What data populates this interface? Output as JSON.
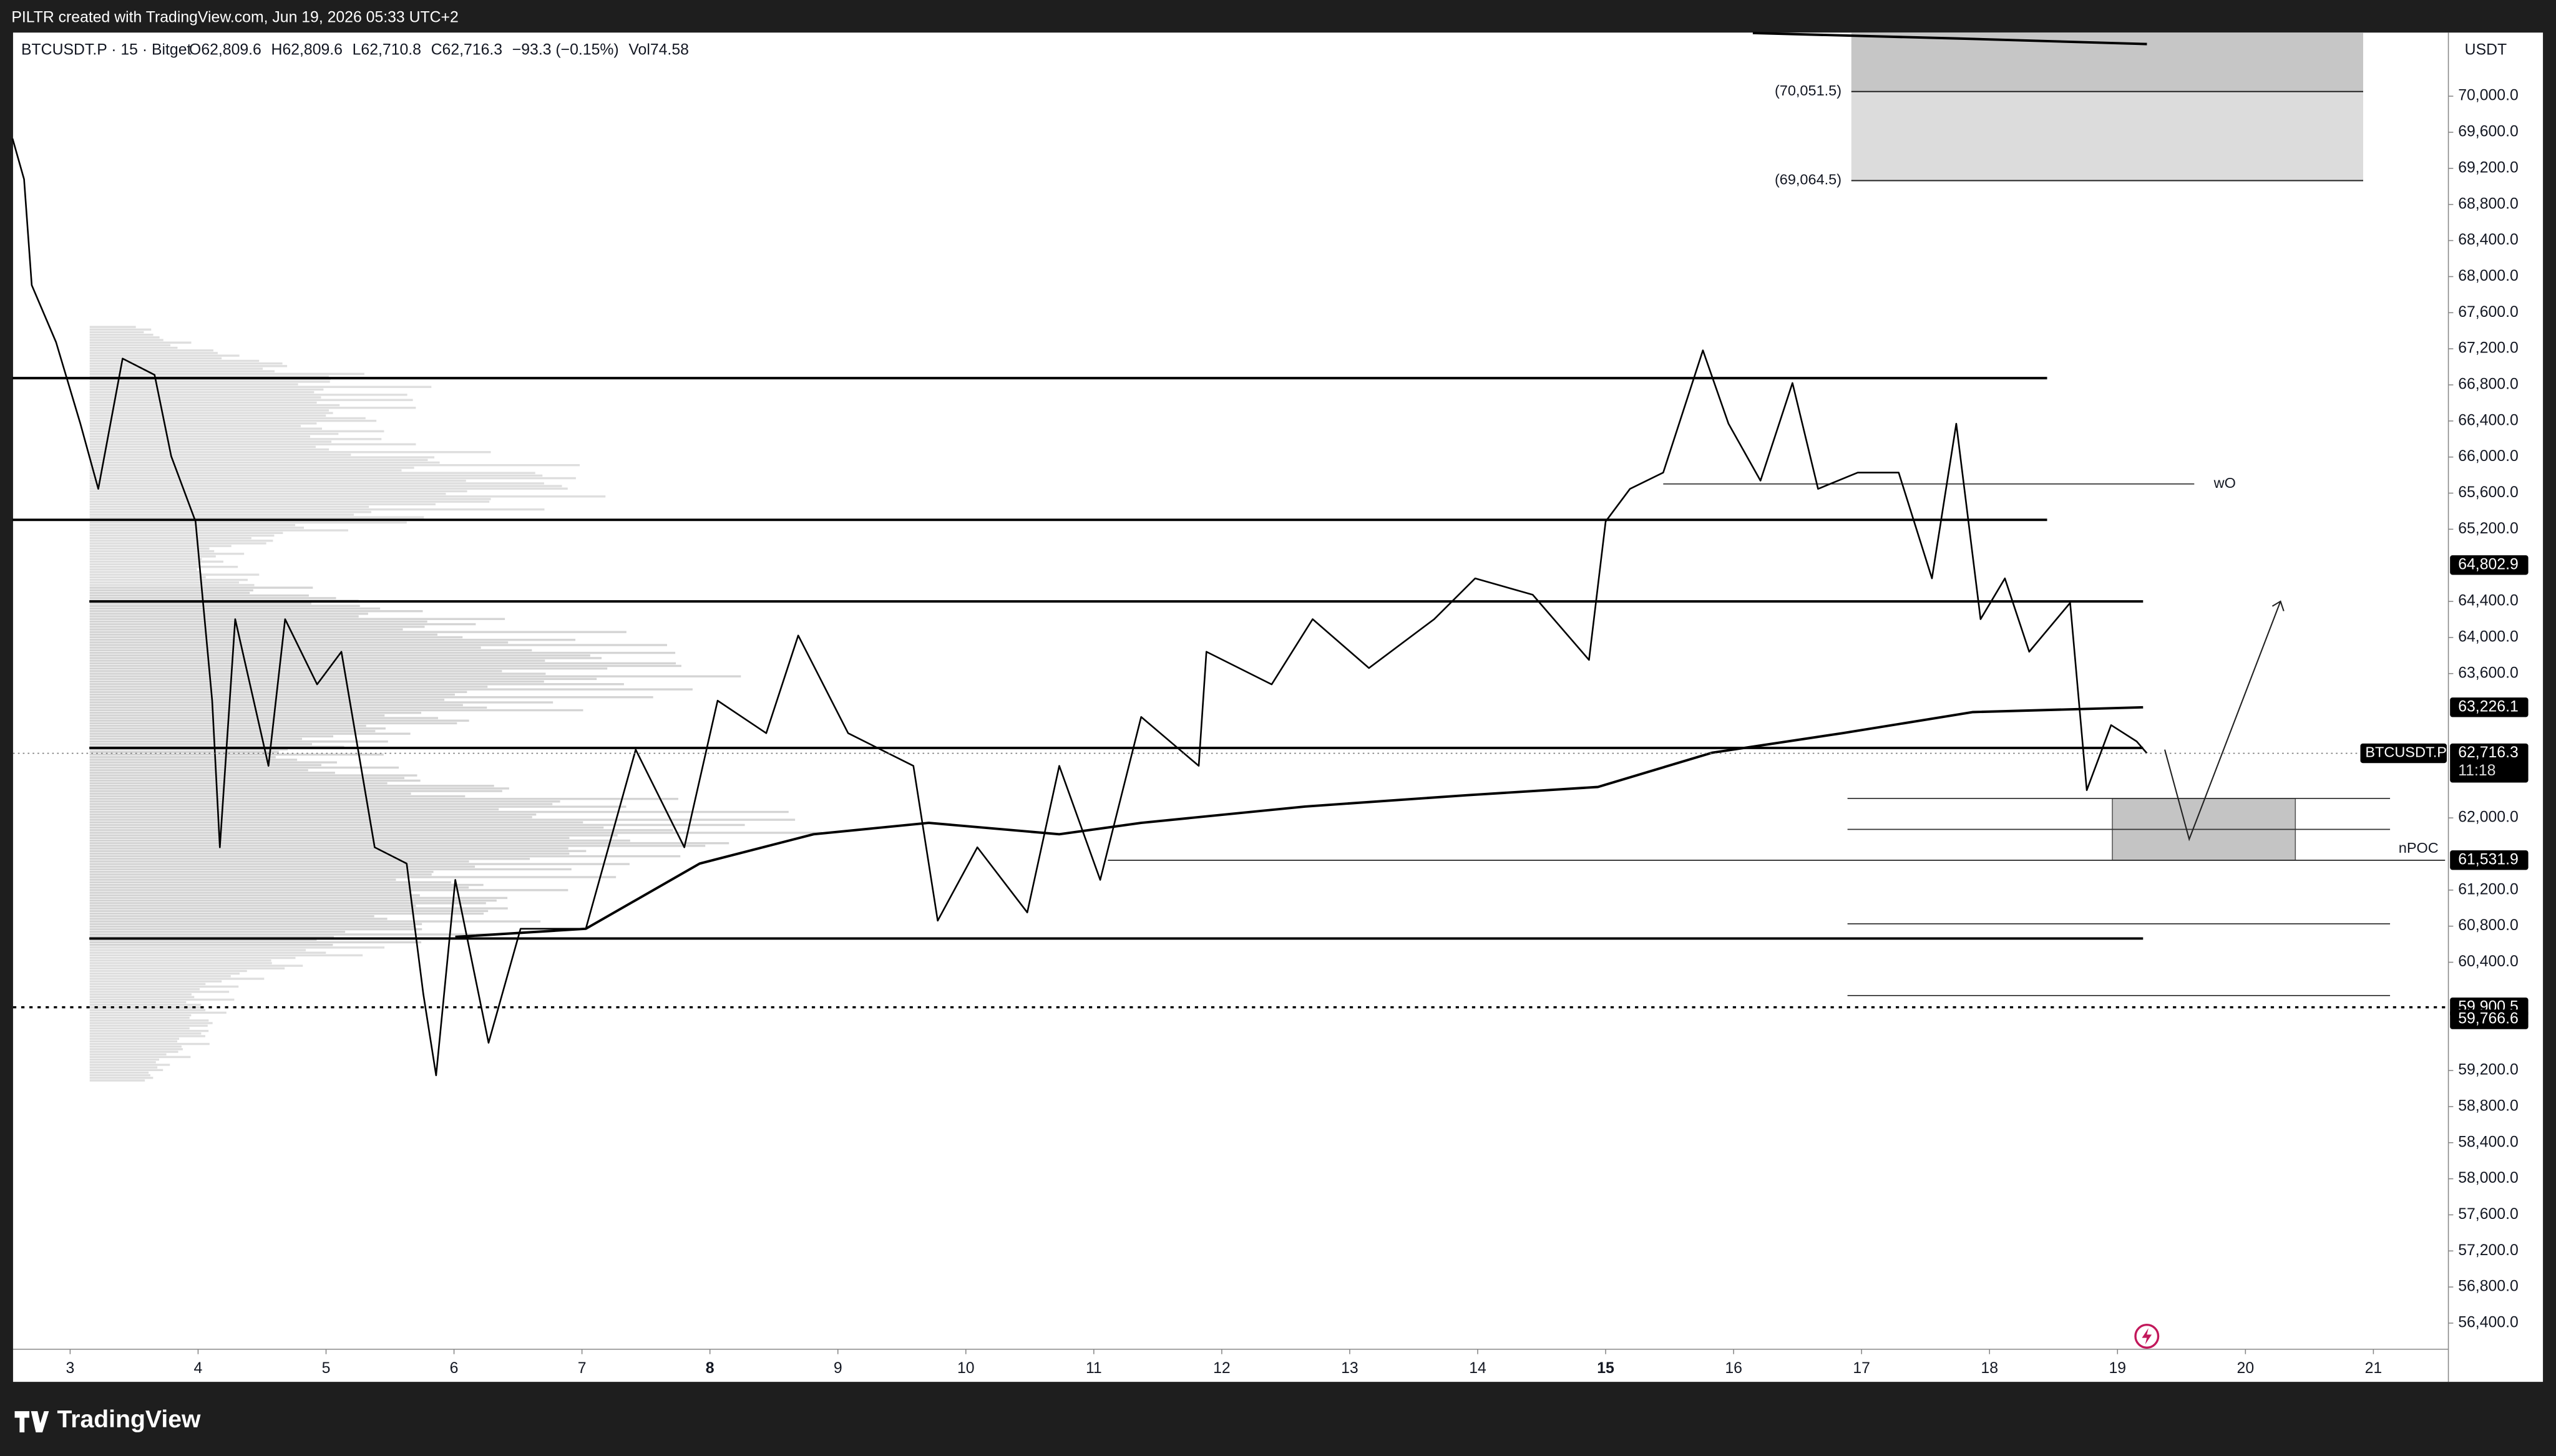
{
  "chart_data": {
    "type": "line",
    "attribution": "PILTR created with TradingView.com, Jun 19, 2026 05:33 UTC+2",
    "title": "BTCUSDT.P · 15 · Bitget",
    "legend_values": [
      "O62,809.6",
      "H62,809.6",
      "L62,710.8",
      "C62,716.3",
      "−93.3 (−0.15%)",
      "Vol74.58"
    ],
    "y_unit": "USDT",
    "brand": "TradingView",
    "xlim": [
      2.554,
      21.586
    ],
    "xticks": [
      3,
      4,
      5,
      6,
      7,
      8,
      9,
      10,
      11,
      12,
      13,
      14,
      15,
      16,
      17,
      18,
      19,
      20,
      21
    ],
    "bold_xticks": [
      8,
      15
    ],
    "ylim": [
      56110,
      70705
    ],
    "yticks": [
      {
        "value": 70000,
        "label": "70,000.0"
      },
      {
        "value": 69600,
        "label": "69,600.0"
      },
      {
        "value": 69200,
        "label": "69,200.0"
      },
      {
        "value": 68800,
        "label": "68,800.0"
      },
      {
        "value": 68400,
        "label": "68,400.0"
      },
      {
        "value": 68000,
        "label": "68,000.0"
      },
      {
        "value": 67600,
        "label": "67,600.0"
      },
      {
        "value": 67200,
        "label": "67,200.0"
      },
      {
        "value": 66800,
        "label": "66,800.0"
      },
      {
        "value": 66400,
        "label": "66,400.0"
      },
      {
        "value": 66000,
        "label": "66,000.0"
      },
      {
        "value": 65600,
        "label": "65,600.0"
      },
      {
        "value": 65200,
        "label": "65,200.0"
      },
      {
        "value": 64400,
        "label": "64,400.0"
      },
      {
        "value": 64000,
        "label": "64,000.0"
      },
      {
        "value": 63600,
        "label": "63,600.0"
      },
      {
        "value": 62000,
        "label": "62,000.0"
      },
      {
        "value": 61200,
        "label": "61,200.0"
      },
      {
        "value": 60800,
        "label": "60,800.0"
      },
      {
        "value": 60400,
        "label": "60,400.0"
      },
      {
        "value": 59200,
        "label": "59,200.0"
      },
      {
        "value": 58800,
        "label": "58,800.0"
      },
      {
        "value": 58400,
        "label": "58,400.0"
      },
      {
        "value": 58000,
        "label": "58,000.0"
      },
      {
        "value": 57600,
        "label": "57,600.0"
      },
      {
        "value": 57200,
        "label": "57,200.0"
      },
      {
        "value": 56800,
        "label": "56,800.0"
      },
      {
        "value": 56400,
        "label": "56,400.0"
      }
    ],
    "series": [
      {
        "color": "#000000",
        "x": [
          2.55,
          2.64,
          2.7,
          2.89,
          3.08,
          3.22,
          3.41,
          3.66,
          3.79,
          3.98,
          4.11,
          4.17,
          4.29,
          4.55,
          4.68,
          4.93,
          5.12,
          5.38,
          5.63,
          5.76,
          5.86,
          6.01,
          6.27,
          6.52,
          7.03,
          7.42,
          7.8,
          8.06,
          8.44,
          8.69,
          9.08,
          9.59,
          9.78,
          10.09,
          10.48,
          10.73,
          11.05,
          11.37,
          11.82,
          11.88,
          12.39,
          12.71,
          13.15,
          13.66,
          13.98,
          14.43,
          14.87,
          15.0,
          15.19,
          15.45,
          15.76,
          15.96,
          16.21,
          16.46,
          16.66,
          16.97,
          17.29,
          17.55,
          17.74,
          17.93,
          18.12,
          18.31,
          18.63,
          18.76,
          18.95,
          19.15,
          19.23
        ],
        "values": [
          69530,
          69079,
          67905,
          67273,
          66370,
          65647,
          67092,
          66911,
          66009,
          65286,
          63300,
          61674,
          64203,
          62577,
          64203,
          63480,
          63842,
          61674,
          61494,
          60049,
          59146,
          61313,
          59507,
          60771,
          60771,
          62757,
          61674,
          63300,
          62939,
          64022,
          62939,
          62577,
          60861,
          61674,
          60952,
          62577,
          61313,
          63119,
          62577,
          63842,
          63480,
          64203,
          63661,
          64203,
          64655,
          64474,
          63751,
          65286,
          65647,
          65828,
          67183,
          66370,
          65738,
          66821,
          65647,
          65828,
          65828,
          64655,
          66370,
          64203,
          64655,
          63842,
          64384,
          62307,
          63029,
          62848,
          62716.3
        ]
      },
      {
        "color": "#000000",
        "x": [
          6.01,
          7.03,
          7.92,
          8.81,
          9.71,
          10.73,
          11.37,
          12.65,
          13.92,
          14.94,
          15.83,
          16.85,
          17.87,
          19.2
        ],
        "values": [
          60681,
          60771,
          61494,
          61819,
          61945,
          61819,
          61945,
          62126,
          62252,
          62343,
          62722,
          62939,
          63173,
          63226.1
        ]
      },
      {
        "color": "#000000",
        "x": [
          16.15,
          17.74,
          19.23
        ],
        "values": [
          70700,
          70640,
          70578
        ]
      }
    ],
    "levels": [
      {
        "value": 66875,
        "x": [
          2.55,
          18.45
        ],
        "style": "thick"
      },
      {
        "value": 65304,
        "x": [
          2.55,
          18.45
        ],
        "style": "thick"
      },
      {
        "value": 64400,
        "x": [
          3.15,
          19.2
        ],
        "style": "thick"
      },
      {
        "value": 62776,
        "x": [
          3.15,
          19.2
        ],
        "style": "thick"
      },
      {
        "value": 60663,
        "x": [
          3.15,
          19.2
        ],
        "style": "thick"
      },
      {
        "value": 65702,
        "x": [
          15.45,
          19.6
        ],
        "style": "thin",
        "label": "wO"
      },
      {
        "value": 61530,
        "x": [
          11.11,
          21.56
        ],
        "style": "thin",
        "label": "nPOC"
      },
      {
        "value": 62216,
        "x": [
          16.89,
          21.13
        ],
        "style": "thin"
      },
      {
        "value": 61873,
        "x": [
          16.89,
          21.13
        ],
        "style": "thin"
      },
      {
        "value": 60826,
        "x": [
          16.89,
          21.13
        ],
        "style": "thin"
      },
      {
        "value": 60031,
        "x": [
          16.89,
          21.13
        ],
        "style": "thin"
      }
    ],
    "zones": [
      {
        "x": [
          16.92,
          20.92
        ],
        "y": [
          70051.5,
          70705
        ],
        "color": "#c6c6c6"
      },
      {
        "x": [
          16.92,
          20.92
        ],
        "y": [
          69064.5,
          70051.5
        ],
        "color": "#dcdcdc"
      },
      {
        "x": [
          18.96,
          20.39
        ],
        "y": [
          61530,
          62216
        ],
        "color": "#c4c4c4"
      }
    ],
    "zone_labels": [
      {
        "value": 70051.5,
        "label": "(70,051.5)"
      },
      {
        "value": 69064.5,
        "label": "(69,064.5)"
      }
    ],
    "price_tags": [
      {
        "value": 64802.9,
        "label": "64,802.9"
      },
      {
        "value": 63226.1,
        "label": "63,226.1"
      },
      {
        "value": 61531.9,
        "label": "61,531.9"
      },
      {
        "value": 59900.5,
        "label": "59,900.5",
        "dotted": "thick"
      },
      {
        "value": 59766.6,
        "label": "59,766.6"
      }
    ],
    "last_price": {
      "value": 62716.3,
      "label": "62,716.3",
      "symbol": "BTCUSDT.P",
      "countdown": "11:18"
    }
  }
}
